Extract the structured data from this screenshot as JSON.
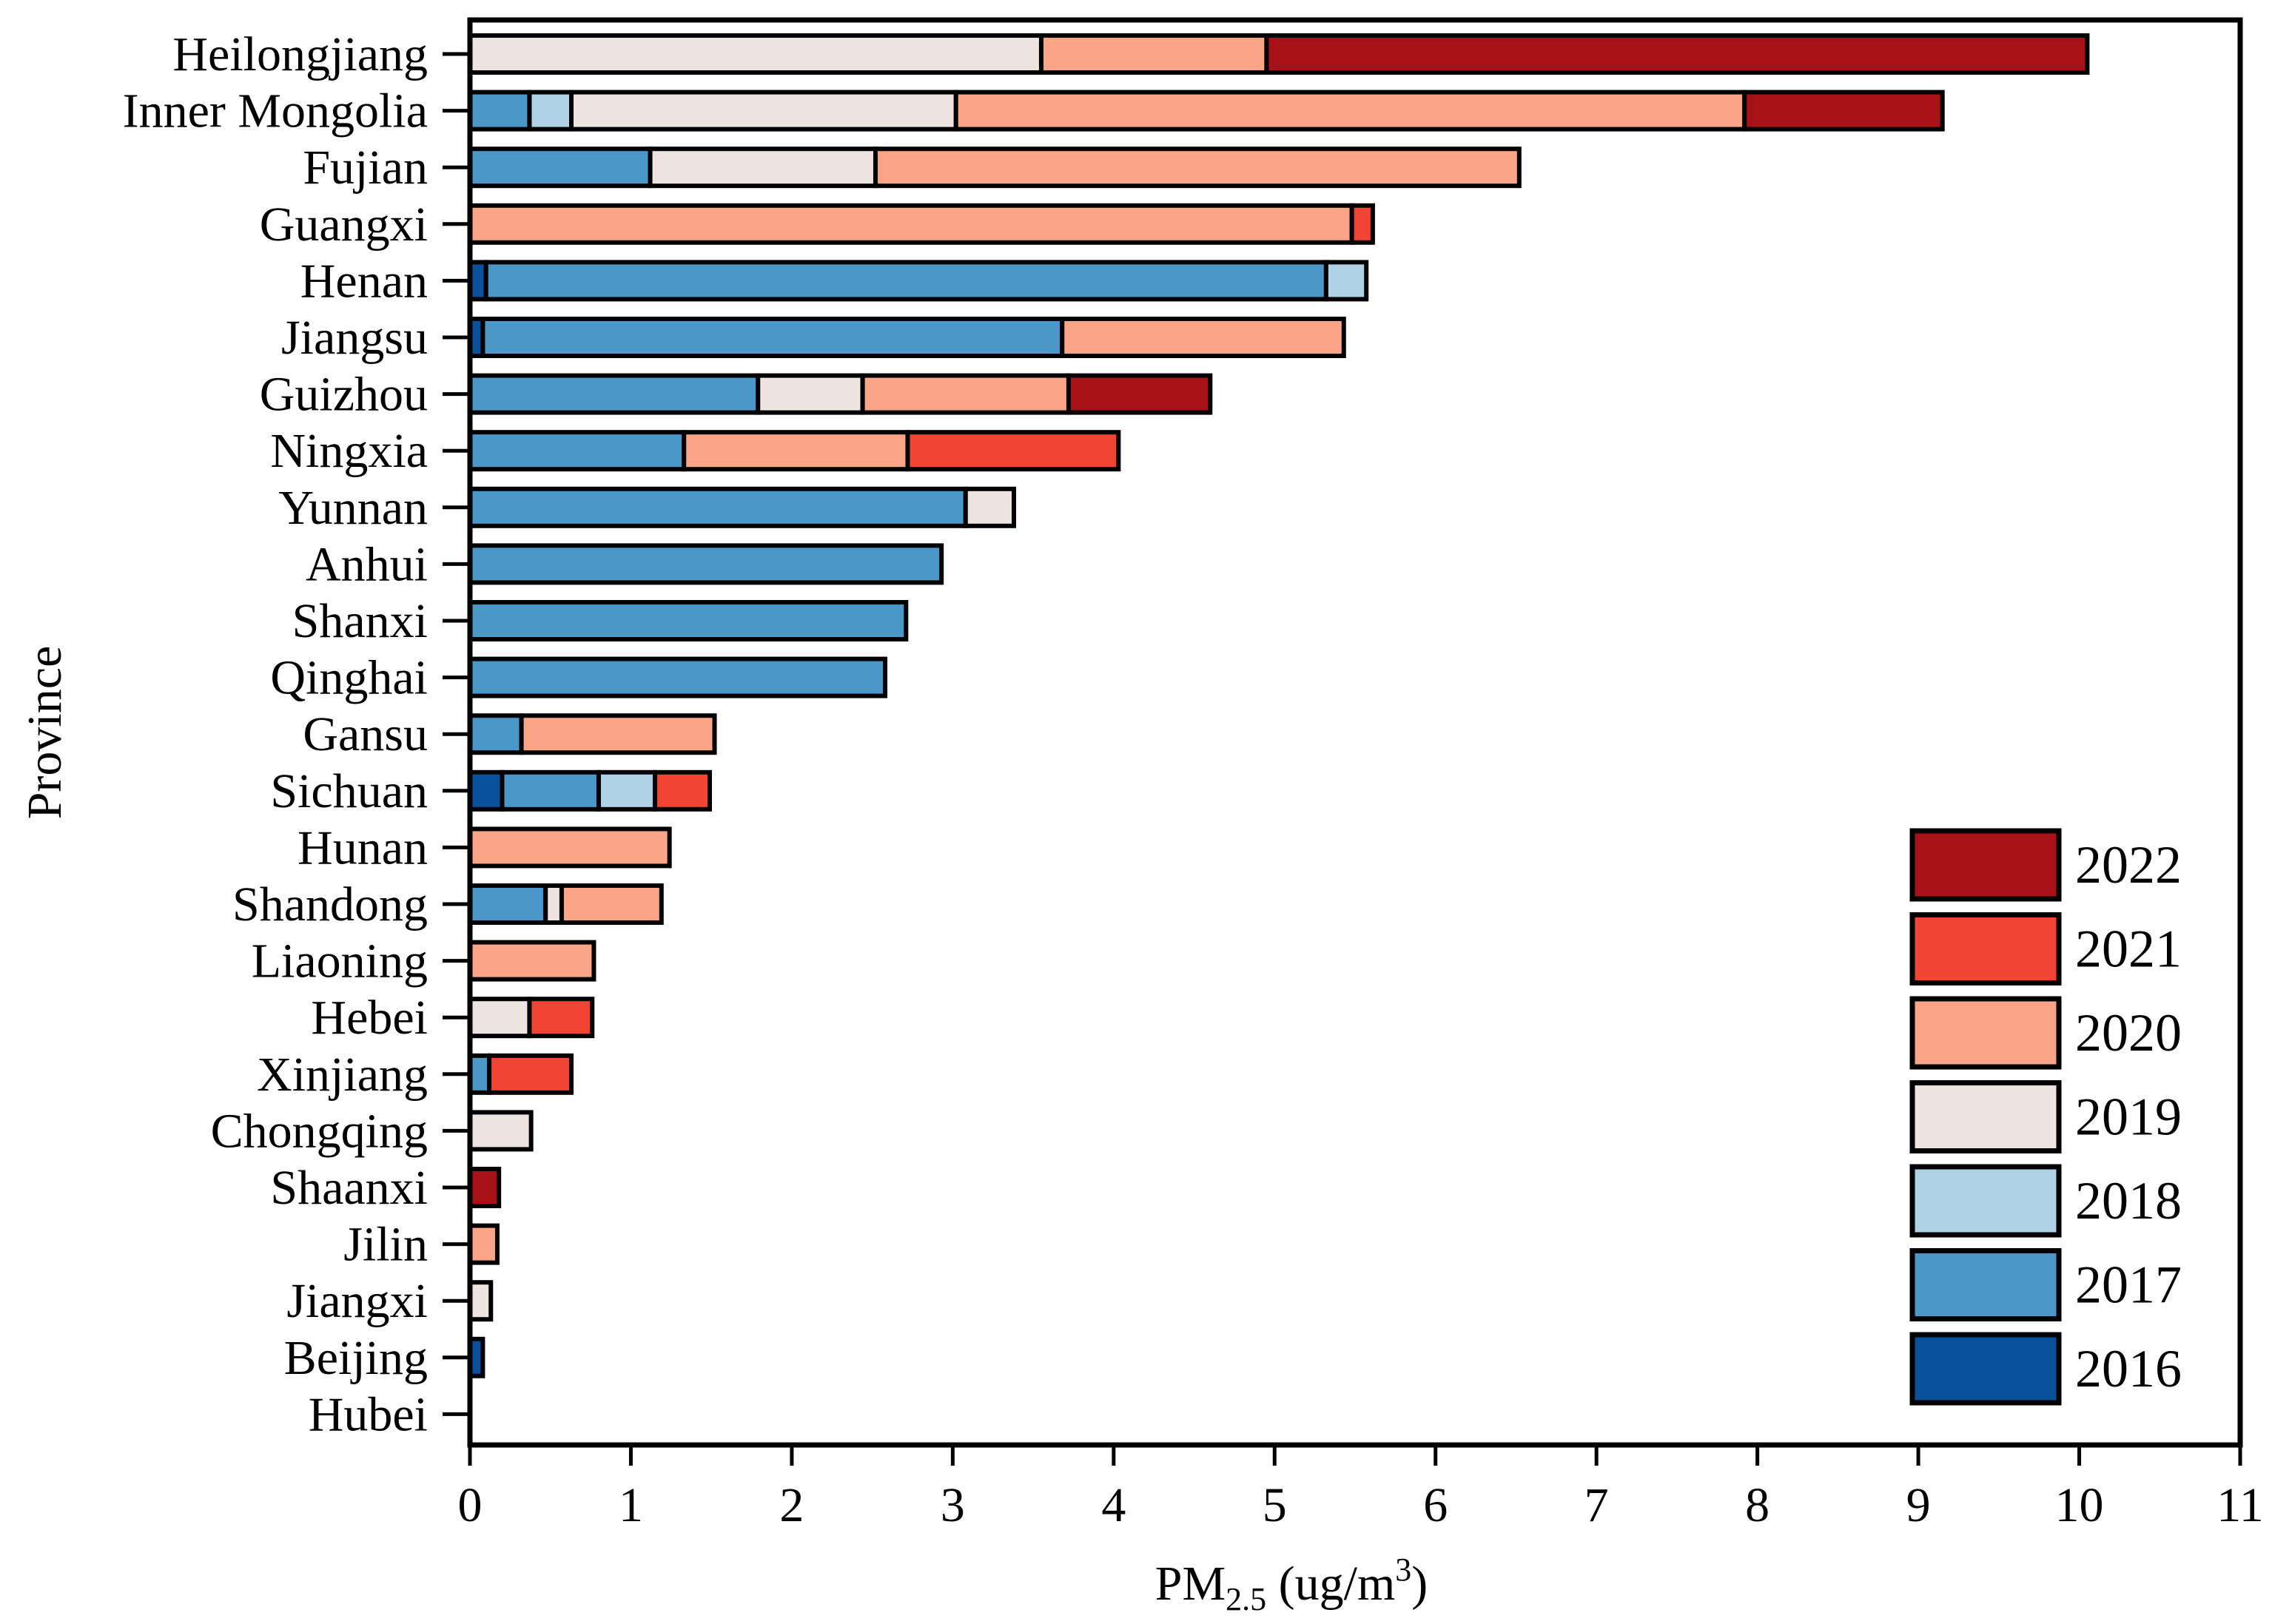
{
  "chart_data": {
    "type": "bar",
    "orientation": "horizontal",
    "stacked": true,
    "title": "",
    "xlabel": {
      "main": "PM",
      "subscript": "2.5",
      "units_prefix": " (ug/m",
      "units_superscript": "3",
      "units_suffix": ")"
    },
    "ylabel": "Province",
    "xlim": [
      0,
      11
    ],
    "xticks": [
      0,
      1,
      2,
      3,
      4,
      5,
      6,
      7,
      8,
      9,
      10,
      11
    ],
    "grid": false,
    "legend_position": "bottom-right",
    "colors": {
      "2016": "#08519c",
      "2017": "#4a98c9",
      "2018": "#aed1e7",
      "2019": "#ede3e1",
      "2020": "#fca486",
      "2021": "#f14432",
      "2022": "#a81118"
    },
    "legend": [
      "2022",
      "2021",
      "2020",
      "2019",
      "2018",
      "2017",
      "2016"
    ],
    "series_order": [
      "2016",
      "2017",
      "2018",
      "2019",
      "2020",
      "2021",
      "2022"
    ],
    "categories": [
      "Heilongjiang",
      "Inner Mongolia",
      "Fujian",
      "Guangxi",
      "Henan",
      "Jiangsu",
      "Guizhou",
      "Ningxia",
      "Yunnan",
      "Anhui",
      "Shanxi",
      "Qinghai",
      "Gansu",
      "Sichuan",
      "Hunan",
      "Shandong",
      "Liaoning",
      "Hebei",
      "Xinjiang",
      "Chongqing",
      "Shaanxi",
      "Jilin",
      "Jiangxi",
      "Beijing",
      "Hubei"
    ],
    "series": [
      {
        "name": "2016",
        "values": [
          0,
          0,
          0,
          0,
          0.1,
          0.08,
          0,
          0,
          0,
          0,
          0,
          0,
          0,
          0.2,
          0,
          0,
          0,
          0,
          0,
          0,
          0,
          0,
          0,
          0.08,
          0
        ]
      },
      {
        "name": "2017",
        "values": [
          0,
          0.37,
          1.12,
          0,
          5.22,
          3.6,
          1.79,
          1.33,
          3.08,
          2.93,
          2.71,
          2.58,
          0.32,
          0.6,
          0,
          0.47,
          0,
          0,
          0.12,
          0,
          0,
          0,
          0,
          0,
          0
        ]
      },
      {
        "name": "2018",
        "values": [
          0,
          0.26,
          0,
          0,
          0.25,
          0,
          0,
          0,
          0,
          0,
          0,
          0,
          0,
          0.35,
          0,
          0,
          0,
          0,
          0,
          0,
          0,
          0,
          0,
          0,
          0
        ]
      },
      {
        "name": "2019",
        "values": [
          3.55,
          2.39,
          1.4,
          0,
          0,
          0,
          0.65,
          0,
          0.3,
          0,
          0,
          0,
          0,
          0,
          0,
          0.1,
          0,
          0.37,
          0,
          0.38,
          0,
          0,
          0.13,
          0,
          0
        ]
      },
      {
        "name": "2020",
        "values": [
          1.4,
          4.9,
          4.0,
          5.48,
          0,
          1.75,
          1.28,
          1.39,
          0,
          0,
          0,
          0,
          1.2,
          0,
          1.24,
          0.62,
          0.77,
          0,
          0,
          0,
          0,
          0.17,
          0,
          0,
          0
        ]
      },
      {
        "name": "2021",
        "values": [
          0,
          0,
          0,
          0.13,
          0,
          0,
          0,
          1.31,
          0,
          0,
          0,
          0,
          0,
          0.34,
          0,
          0,
          0,
          0.39,
          0.51,
          0,
          0,
          0,
          0,
          0,
          0
        ]
      },
      {
        "name": "2022",
        "values": [
          5.1,
          1.23,
          0,
          0,
          0,
          0,
          0.88,
          0,
          0,
          0,
          0,
          0,
          0,
          0,
          0,
          0,
          0,
          0,
          0,
          0,
          0.18,
          0,
          0,
          0,
          0
        ]
      }
    ]
  }
}
